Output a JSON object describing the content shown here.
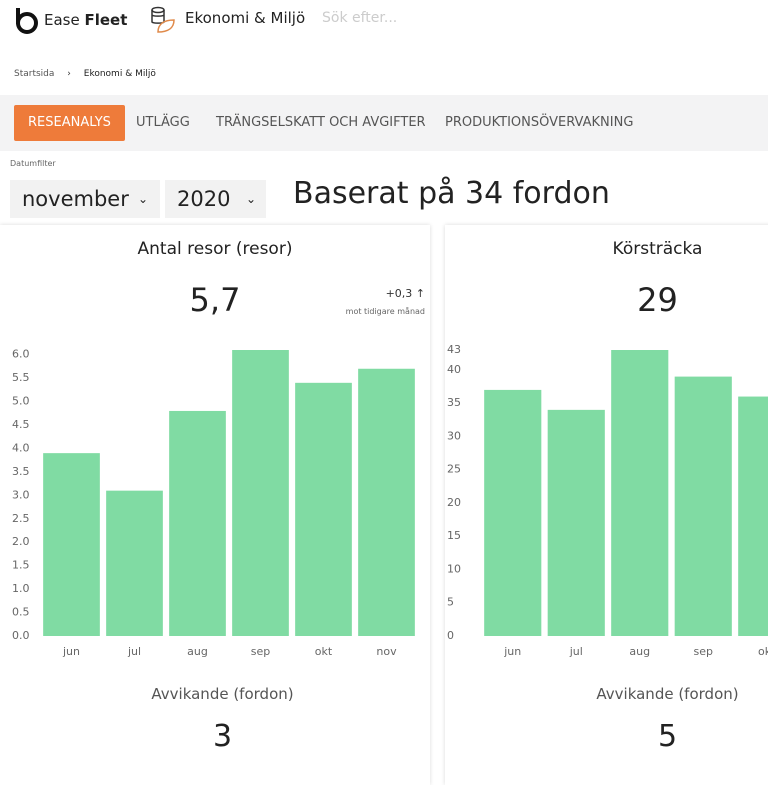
{
  "header": {
    "brand_light": "Ease",
    "brand_bold": "Fleet",
    "module": "Ekonomi & Miljö",
    "search_placeholder": "Sök efter..."
  },
  "breadcrumb": [
    "Startsida",
    "Ekonomi & Miljö"
  ],
  "tabs": [
    "RESEANALYS",
    "UTLÄGG",
    "TRÄNGSELSKATT OCH AVGIFTER",
    "PRODUKTIONSÖVERVAKNING"
  ],
  "filter": {
    "label": "Datumfilter",
    "month": "november",
    "year": "2020"
  },
  "summary": "Baserat på 34 fordon",
  "panels": [
    {
      "title": "Antal resor (resor)",
      "value": "5,7",
      "change": "+0,3 ↑",
      "change_note": "mot tidigare månad",
      "chart_data": {
        "type": "bar",
        "categories": [
          "jun",
          "jul",
          "aug",
          "sep",
          "okt",
          "nov"
        ],
        "values": [
          3.9,
          3.1,
          4.8,
          6.1,
          5.4,
          5.7
        ],
        "color": "#80dba3",
        "ylim": [
          0,
          6.1
        ],
        "yticks": [
          {
            "value": 0,
            "label": "0.0"
          },
          {
            "value": 0.5,
            "label": "0.5"
          },
          {
            "value": 1,
            "label": "1.0"
          },
          {
            "value": 1.5,
            "label": "1.5"
          },
          {
            "value": 2,
            "label": "2.0"
          },
          {
            "value": 2.5,
            "label": "2.5"
          },
          {
            "value": 3,
            "label": "3.0"
          },
          {
            "value": 3.5,
            "label": "3.5"
          },
          {
            "value": 4,
            "label": "4.0"
          },
          {
            "value": 4.5,
            "label": "4.5"
          },
          {
            "value": 5,
            "label": "5.0"
          },
          {
            "value": 5.5,
            "label": "5.5"
          },
          {
            "value": 6,
            "label": "6.0"
          }
        ]
      },
      "deviation_label": "Avvikande (fordon)",
      "deviation_value": "3"
    },
    {
      "title": "Körsträcka",
      "value": "29",
      "chart_data": {
        "type": "bar",
        "categories": [
          "jun",
          "jul",
          "aug",
          "sep",
          "okt"
        ],
        "values": [
          37,
          34,
          43,
          39,
          36
        ],
        "color": "#80dba3",
        "ylim": [
          0,
          43
        ],
        "yticks": [
          0,
          5,
          10,
          15,
          20,
          25,
          30,
          35,
          40,
          43
        ]
      },
      "deviation_label": "Avvikande (fordon)",
      "deviation_value": "5"
    }
  ]
}
